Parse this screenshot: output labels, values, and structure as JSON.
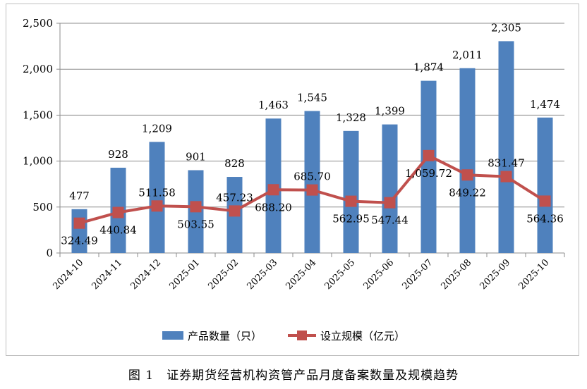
{
  "chart_data": {
    "type": "bar+line",
    "title": "",
    "caption": "图 1　证券期货经营机构资管产品月度备案数量及规模趋势",
    "categories": [
      "2024-10",
      "2024-11",
      "2024-12",
      "2025-01",
      "2025-02",
      "2025-03",
      "2025-04",
      "2025-05",
      "2025-06",
      "2025-07",
      "2025-08",
      "2025-09",
      "2025-10"
    ],
    "series": [
      {
        "name": "产品数量（只）",
        "type": "bar",
        "color": "#4F81BD",
        "values": [
          477,
          928,
          1209,
          901,
          828,
          1463,
          1545,
          1328,
          1399,
          1874,
          2011,
          2305,
          1474
        ],
        "labels": [
          "477",
          "928",
          "1,209",
          "901",
          "828",
          "1,463",
          "1,545",
          "1,328",
          "1,399",
          "1,874",
          "2,011",
          "2,305",
          "1,474"
        ]
      },
      {
        "name": "设立规模（亿元）",
        "type": "line",
        "color": "#C0504D",
        "values": [
          324.49,
          440.84,
          511.58,
          503.55,
          457.23,
          688.2,
          685.7,
          562.95,
          547.44,
          1059.72,
          849.22,
          831.47,
          564.36
        ],
        "labels": [
          "324.49",
          "440.84",
          "511.58",
          "503.55",
          "457.23",
          "688.20",
          "685.70",
          "562.95",
          "547.44",
          "1,059.72",
          "849.22",
          "831.47",
          "564.36"
        ]
      }
    ],
    "ylim": [
      0,
      2500
    ],
    "yticks": [
      0,
      500,
      1000,
      1500,
      2000,
      2500
    ],
    "ytick_labels": [
      "0",
      "500",
      "1,000",
      "1,500",
      "2,000",
      "2,500"
    ],
    "grid": true,
    "legend": "bottom"
  }
}
